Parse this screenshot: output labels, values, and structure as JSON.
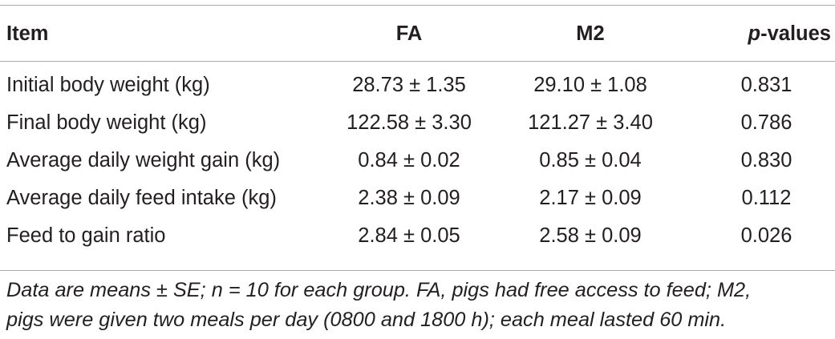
{
  "table": {
    "headers": {
      "item": "Item",
      "fa": "FA",
      "m2": "M2",
      "p_prefix": "p",
      "p_suffix": "-values"
    },
    "rows": [
      {
        "item": "Initial body weight (kg)",
        "fa": "28.73 ± 1.35",
        "m2": "29.10 ± 1.08",
        "p": "0.831"
      },
      {
        "item": "Final body weight (kg)",
        "fa": "122.58 ± 3.30",
        "m2": "121.27 ± 3.40",
        "p": "0.786"
      },
      {
        "item": "Average daily weight gain (kg)",
        "fa": "0.84 ± 0.02",
        "m2": "0.85 ± 0.04",
        "p": "0.830"
      },
      {
        "item": "Average daily feed intake (kg)",
        "fa": "2.38 ± 0.09",
        "m2": "2.17 ± 0.09",
        "p": "0.112"
      },
      {
        "item": "Feed to gain ratio",
        "fa": "2.84 ± 0.05",
        "m2": "2.58 ± 0.09",
        "p": "0.026"
      }
    ]
  },
  "footnote": {
    "line1": "Data are means ± SE; n = 10 for each group. FA, pigs had free access to feed; M2,",
    "line2": "pigs were given two meals per day (0800 and 1800 h); each meal lasted 60 min."
  }
}
